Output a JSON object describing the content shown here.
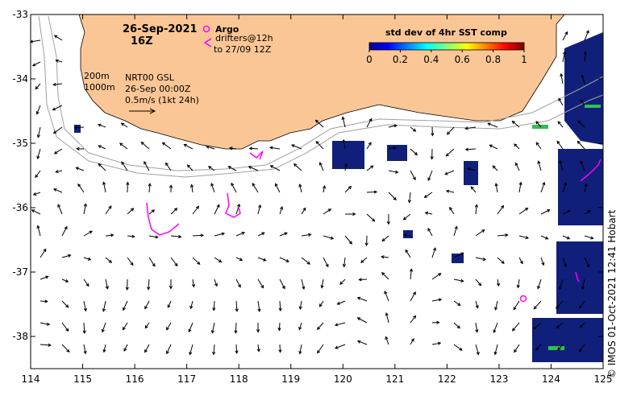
{
  "map": {
    "date": "26-Sep-2021",
    "hour": "16Z",
    "argo_label": "Argo",
    "drifters_label": "drifters@12h",
    "drifters_to": "to 27/09 12Z",
    "isobath_200": "200m",
    "isobath_1000": "1000m",
    "product": "NRT00 GSL",
    "product_time": "26-Sep 00:00Z",
    "scale_arrow": "0.5m/s (1kt 24h)",
    "colorbar_title": "std dev of 4hr SST comp",
    "colorbar_ticks": [
      "0",
      "0.2",
      "0.4",
      "0.6",
      "0.8",
      "1"
    ],
    "lat_ticks": [
      "-33",
      "-34",
      "-35",
      "-36",
      "-37",
      "-38"
    ],
    "lon_ticks": [
      "114",
      "115",
      "116",
      "117",
      "118",
      "119",
      "120",
      "121",
      "122",
      "123",
      "124",
      "125"
    ],
    "credit": "© IMOS 01-Oct-2021 12:41 Hobart",
    "colors": {
      "land": "#fbc695",
      "drifter": "#ff00ff",
      "sst_blue": "#10207a",
      "sst_green": "#30c050",
      "isobath": "#a0a0a0"
    },
    "bounds": {
      "lon": [
        114,
        125
      ],
      "lat": [
        -38.5,
        -33
      ]
    }
  }
}
